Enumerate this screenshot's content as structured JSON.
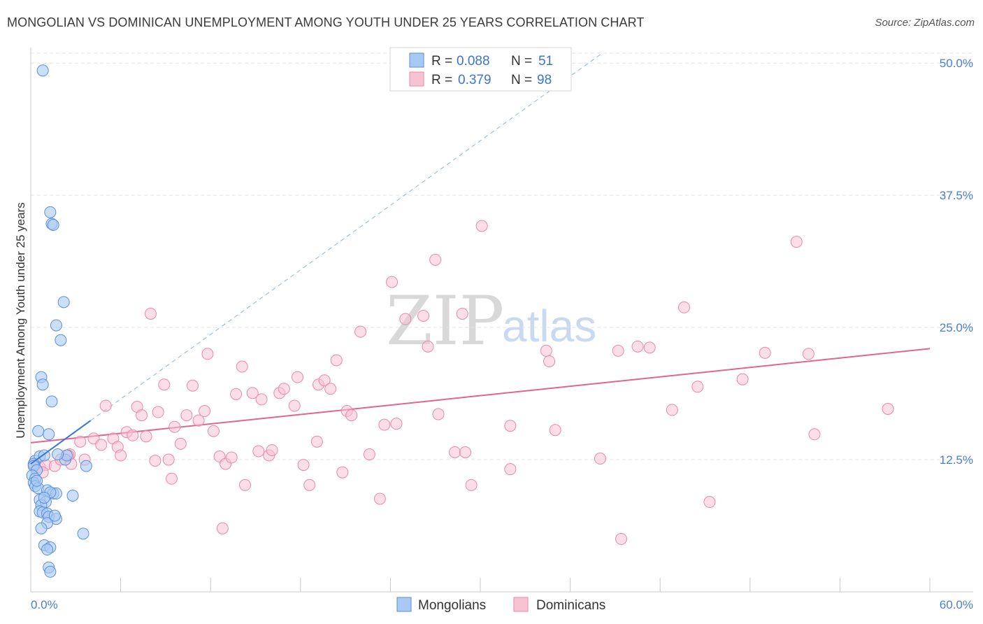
{
  "chart_data": {
    "type": "scatter",
    "title": "MONGOLIAN VS DOMINICAN UNEMPLOYMENT AMONG YOUTH UNDER 25 YEARS CORRELATION CHART",
    "source": "Source: ZipAtlas.com",
    "xlabel": "",
    "ylabel": "Unemployment Among Youth under 25 years",
    "xlim": [
      0,
      60
    ],
    "ylim": [
      0,
      52
    ],
    "x_tick_labels": [
      "0.0%",
      "60.0%"
    ],
    "y_ticks": [
      12.5,
      25.0,
      37.5,
      50.0
    ],
    "y_tick_labels": [
      "12.5%",
      "25.0%",
      "37.5%",
      "50.0%"
    ],
    "grid": true,
    "watermark": {
      "zip": "ZIP",
      "atlas": "atlas"
    },
    "colors": {
      "mongolians_fill": "#a9c9f5",
      "mongolians_stroke": "#5b8fd8",
      "mongolians_line": "#3a75d4",
      "dominicans_fill": "#f7c3d3",
      "dominicans_stroke": "#e888a8",
      "dominicans_line": "#e06690",
      "tick_label": "#4a7ed0"
    },
    "legend": {
      "position": "top-center",
      "rows": [
        {
          "r_label": "R =",
          "r_value": "0.088",
          "n_label": "N =",
          "n_value": "51"
        },
        {
          "r_label": "R =",
          "r_value": "0.379",
          "n_label": "N =",
          "n_value": "98"
        }
      ]
    },
    "series": [
      {
        "name": "Mongolians",
        "trend_solid": [
          [
            0.0,
            12.1
          ],
          [
            4.0,
            16.2
          ]
        ],
        "trend_dashed": [
          [
            4.0,
            16.2
          ],
          [
            38.0,
            50.8
          ]
        ],
        "points": [
          [
            0.8,
            49.3
          ],
          [
            1.3,
            35.9
          ],
          [
            1.4,
            34.8
          ],
          [
            1.5,
            34.7
          ],
          [
            2.2,
            27.4
          ],
          [
            1.7,
            25.2
          ],
          [
            2.0,
            23.8
          ],
          [
            0.7,
            20.3
          ],
          [
            0.8,
            19.6
          ],
          [
            1.4,
            18.0
          ],
          [
            0.5,
            15.2
          ],
          [
            1.2,
            14.9
          ],
          [
            0.3,
            12.4
          ],
          [
            0.6,
            12.8
          ],
          [
            0.9,
            12.9
          ],
          [
            0.2,
            12.1
          ],
          [
            0.2,
            11.9
          ],
          [
            0.4,
            11.5
          ],
          [
            0.1,
            11.0
          ],
          [
            0.3,
            10.7
          ],
          [
            0.2,
            10.3
          ],
          [
            0.3,
            10.0
          ],
          [
            0.5,
            9.8
          ],
          [
            1.1,
            9.6
          ],
          [
            1.5,
            9.3
          ],
          [
            1.7,
            9.3
          ],
          [
            1.3,
            9.4
          ],
          [
            2.8,
            9.1
          ],
          [
            0.6,
            8.7
          ],
          [
            1.0,
            8.5
          ],
          [
            0.7,
            8.2
          ],
          [
            0.6,
            7.6
          ],
          [
            0.8,
            7.5
          ],
          [
            1.1,
            7.4
          ],
          [
            1.2,
            7.1
          ],
          [
            1.7,
            6.9
          ],
          [
            1.1,
            6.5
          ],
          [
            0.7,
            6.0
          ],
          [
            3.5,
            5.5
          ],
          [
            0.9,
            4.4
          ],
          [
            1.3,
            4.2
          ],
          [
            1.1,
            4.0
          ],
          [
            1.2,
            2.3
          ],
          [
            1.3,
            1.9
          ],
          [
            2.3,
            12.5
          ],
          [
            2.4,
            12.9
          ],
          [
            3.7,
            11.9
          ],
          [
            1.8,
            13.0
          ],
          [
            0.4,
            10.5
          ],
          [
            0.9,
            8.9
          ],
          [
            1.6,
            7.2
          ]
        ]
      },
      {
        "name": "Dominicans",
        "trend_solid": [
          [
            0.0,
            14.1
          ],
          [
            60.0,
            23.0
          ]
        ],
        "points": [
          [
            0.2,
            12.0
          ],
          [
            0.6,
            11.8
          ],
          [
            1.0,
            12.0
          ],
          [
            0.8,
            11.3
          ],
          [
            1.6,
            11.9
          ],
          [
            2.0,
            12.5
          ],
          [
            2.6,
            13.0
          ],
          [
            2.7,
            12.1
          ],
          [
            2.5,
            12.9
          ],
          [
            3.3,
            14.2
          ],
          [
            3.6,
            12.5
          ],
          [
            4.2,
            14.5
          ],
          [
            4.7,
            13.9
          ],
          [
            5.0,
            17.6
          ],
          [
            5.5,
            14.5
          ],
          [
            5.8,
            13.7
          ],
          [
            6.0,
            12.9
          ],
          [
            6.4,
            15.1
          ],
          [
            6.8,
            14.8
          ],
          [
            7.1,
            17.5
          ],
          [
            7.4,
            16.7
          ],
          [
            7.7,
            14.7
          ],
          [
            8.0,
            26.3
          ],
          [
            8.3,
            12.4
          ],
          [
            8.5,
            17.0
          ],
          [
            8.9,
            19.6
          ],
          [
            9.4,
            10.7
          ],
          [
            9.6,
            15.6
          ],
          [
            10.0,
            14.0
          ],
          [
            10.4,
            16.7
          ],
          [
            10.8,
            19.5
          ],
          [
            11.2,
            16.2
          ],
          [
            11.6,
            17.1
          ],
          [
            11.8,
            22.5
          ],
          [
            12.2,
            15.2
          ],
          [
            12.6,
            12.8
          ],
          [
            12.8,
            6.0
          ],
          [
            13.0,
            12.1
          ],
          [
            13.4,
            12.7
          ],
          [
            13.7,
            18.7
          ],
          [
            14.1,
            21.3
          ],
          [
            14.3,
            10.1
          ],
          [
            14.8,
            18.8
          ],
          [
            15.2,
            13.3
          ],
          [
            15.4,
            18.2
          ],
          [
            15.9,
            12.9
          ],
          [
            16.1,
            13.4
          ],
          [
            16.6,
            18.8
          ],
          [
            16.9,
            19.2
          ],
          [
            17.6,
            17.6
          ],
          [
            17.8,
            20.3
          ],
          [
            18.2,
            12.0
          ],
          [
            18.6,
            10.1
          ],
          [
            19.1,
            14.2
          ],
          [
            19.2,
            19.6
          ],
          [
            19.6,
            20.0
          ],
          [
            20.0,
            19.2
          ],
          [
            20.4,
            21.9
          ],
          [
            20.8,
            11.3
          ],
          [
            21.1,
            17.1
          ],
          [
            21.4,
            16.7
          ],
          [
            22.0,
            24.6
          ],
          [
            22.6,
            13.0
          ],
          [
            23.3,
            8.8
          ],
          [
            23.6,
            15.8
          ],
          [
            24.1,
            29.3
          ],
          [
            24.4,
            15.9
          ],
          [
            25.0,
            25.8
          ],
          [
            26.2,
            26.1
          ],
          [
            26.5,
            23.2
          ],
          [
            27.0,
            31.4
          ],
          [
            27.2,
            16.8
          ],
          [
            28.3,
            13.2
          ],
          [
            28.8,
            26.3
          ],
          [
            29.0,
            13.2
          ],
          [
            29.4,
            10.1
          ],
          [
            30.1,
            34.6
          ],
          [
            32.0,
            15.7
          ],
          [
            32.0,
            11.6
          ],
          [
            34.4,
            22.8
          ],
          [
            34.6,
            21.8
          ],
          [
            35.0,
            15.3
          ],
          [
            38.0,
            12.6
          ],
          [
            39.2,
            22.8
          ],
          [
            39.4,
            5.0
          ],
          [
            40.5,
            23.2
          ],
          [
            41.3,
            23.1
          ],
          [
            42.8,
            17.2
          ],
          [
            43.6,
            26.9
          ],
          [
            44.5,
            19.4
          ],
          [
            45.3,
            8.5
          ],
          [
            47.5,
            20.1
          ],
          [
            49.0,
            22.6
          ],
          [
            51.1,
            33.1
          ],
          [
            51.9,
            22.5
          ],
          [
            52.3,
            14.9
          ],
          [
            57.2,
            17.3
          ],
          [
            9.2,
            12.5
          ]
        ]
      }
    ]
  }
}
